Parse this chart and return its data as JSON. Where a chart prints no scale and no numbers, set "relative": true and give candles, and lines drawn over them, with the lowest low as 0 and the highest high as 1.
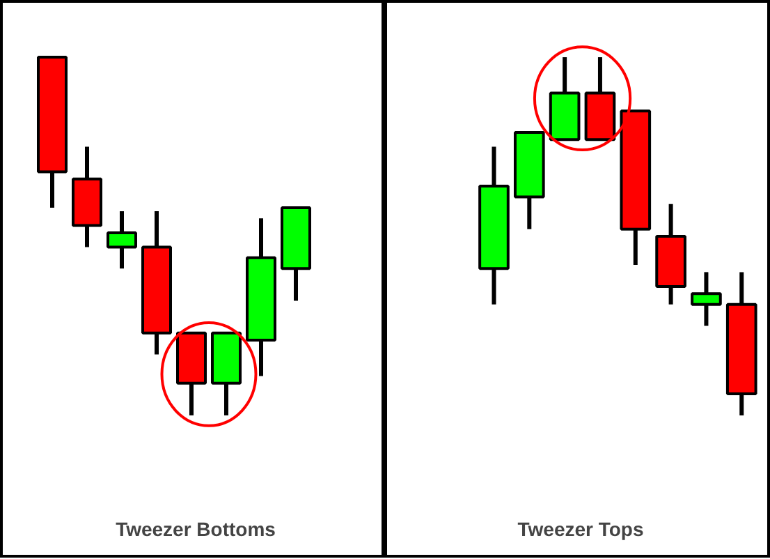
{
  "chart_data": [
    {
      "type": "candlestick",
      "title": "Tweezer Bottoms",
      "relative": true,
      "categories": [
        null,
        null,
        null,
        null,
        null,
        null,
        null,
        null
      ],
      "ohlc": [
        [
          1.0,
          1.0,
          0.58,
          0.68
        ],
        [
          0.66,
          0.75,
          0.47,
          0.53
        ],
        [
          0.47,
          0.57,
          0.41,
          0.51
        ],
        [
          0.47,
          0.57,
          0.17,
          0.23
        ],
        [
          0.23,
          0.23,
          0.0,
          0.09
        ],
        [
          0.09,
          0.23,
          0.0,
          0.23
        ],
        [
          0.21,
          0.55,
          0.11,
          0.44
        ],
        [
          0.41,
          0.58,
          0.32,
          0.58
        ]
      ],
      "colors": [
        "#ff0000",
        "#ff0000",
        "#00ff00",
        "#ff0000",
        "#ff0000",
        "#00ff00",
        "#00ff00",
        "#00ff00"
      ]
    },
    {
      "type": "candlestick",
      "title": "Tweezer Tops",
      "relative": true,
      "categories": [
        null,
        null,
        null,
        null,
        null,
        null,
        null,
        null
      ],
      "ohlc": [
        [
          0.41,
          0.75,
          0.31,
          0.64
        ],
        [
          0.61,
          0.79,
          0.52,
          0.79
        ],
        [
          0.77,
          1.0,
          0.77,
          0.9
        ],
        [
          0.9,
          1.0,
          0.77,
          0.77
        ],
        [
          0.85,
          0.85,
          0.42,
          0.52
        ],
        [
          0.5,
          0.59,
          0.31,
          0.36
        ],
        [
          0.31,
          0.4,
          0.25,
          0.34
        ],
        [
          0.31,
          0.4,
          0.0,
          0.06
        ]
      ],
      "colors": [
        "#00ff00",
        "#00ff00",
        "#00ff00",
        "#ff0000",
        "#ff0000",
        "#ff0000",
        "#00ff00",
        "#ff0000"
      ]
    }
  ]
}
